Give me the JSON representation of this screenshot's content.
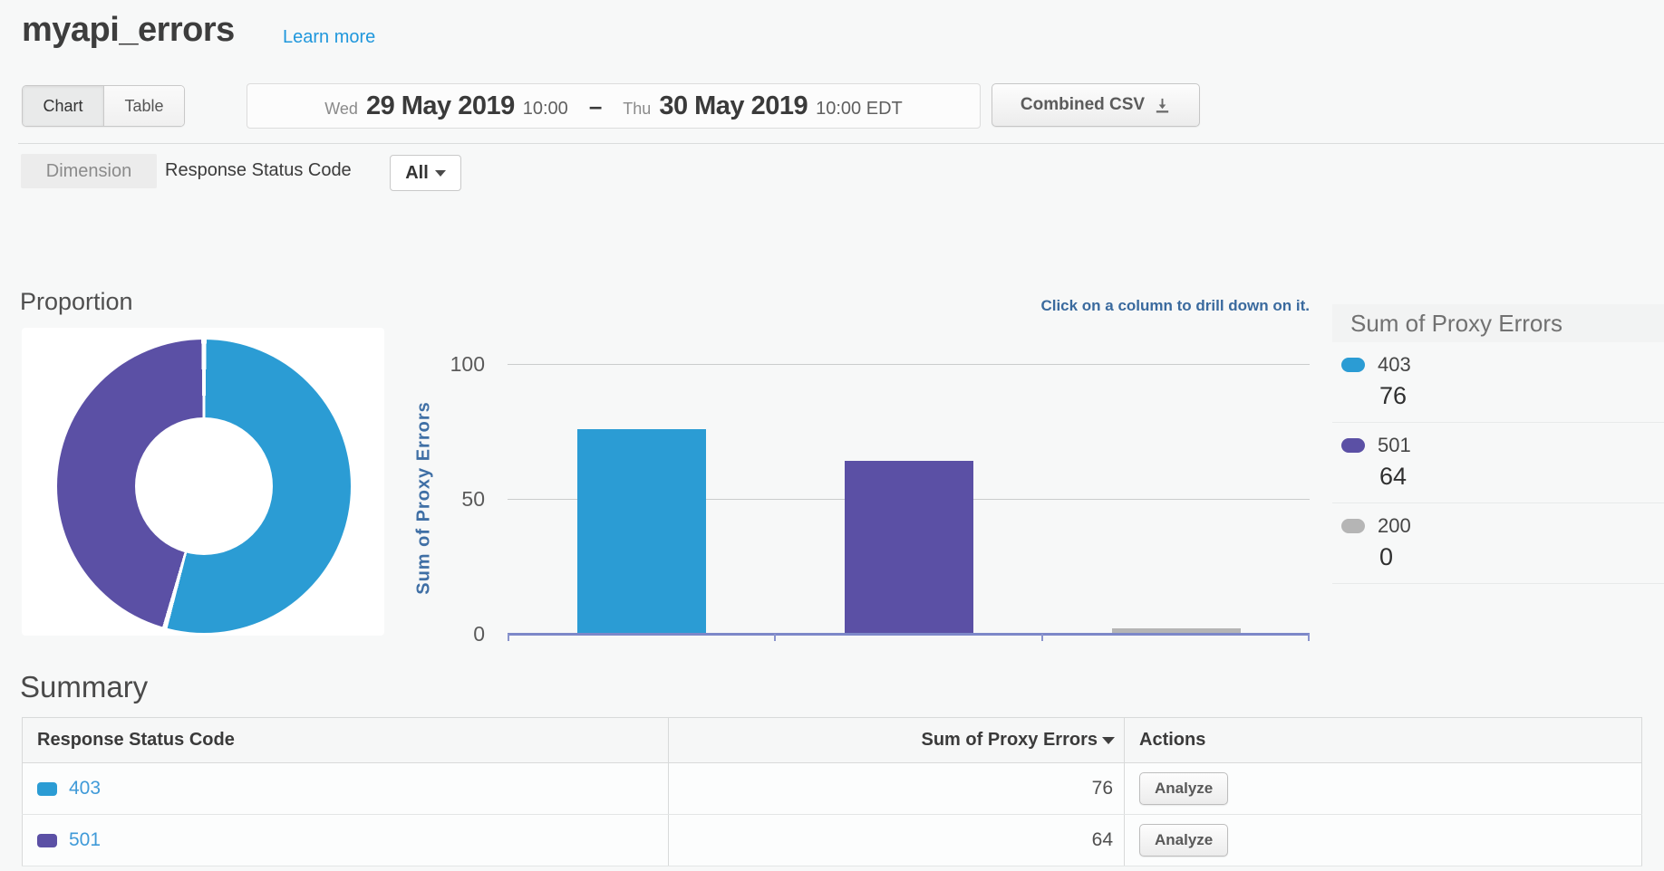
{
  "page": {
    "title": "myapi_errors",
    "learn_more": "Learn more"
  },
  "toolbar": {
    "view_toggle": [
      {
        "label": "Chart",
        "active": true
      },
      {
        "label": "Table",
        "active": false
      }
    ],
    "date_range": {
      "from_day": "Wed",
      "from_date": "29 May 2019",
      "from_time": "10:00",
      "separator": "–",
      "to_day": "Thu",
      "to_date": "30 May 2019",
      "to_time": "10:00 EDT"
    },
    "csv_button": "Combined CSV"
  },
  "dimension_bar": {
    "label": "Dimension",
    "dimension": "Response Status Code",
    "filter_value": "All"
  },
  "charts": {
    "proportion_title": "Proportion",
    "drill_hint": "Click on a column to drill down on it.",
    "y_axis_label": "Sum of Proxy Errors",
    "y_ticks": [
      "100",
      "50",
      "0"
    ],
    "legend": {
      "title": "Sum of Proxy Errors",
      "items": [
        {
          "label": "403",
          "value": "76",
          "color": "#2b9cd4"
        },
        {
          "label": "501",
          "value": "64",
          "color": "#5b50a5"
        },
        {
          "label": "200",
          "value": "0",
          "color": "#b5b5b5"
        }
      ]
    }
  },
  "chart_data": [
    {
      "type": "pie",
      "title": "Proportion",
      "labels": [
        "403",
        "501"
      ],
      "values": [
        76,
        64
      ],
      "colors": [
        "#2b9cd4",
        "#5b50a5"
      ],
      "donut": true
    },
    {
      "type": "bar",
      "title": "Sum of Proxy Errors",
      "categories": [
        "403",
        "501",
        "200"
      ],
      "values": [
        76,
        64,
        0
      ],
      "colors": [
        "#2b9cd4",
        "#5b50a5",
        "#b5b5b5"
      ],
      "xlabel": "Response Status Code",
      "ylabel": "Sum of Proxy Errors",
      "ylim": [
        0,
        100
      ],
      "yticks": [
        0,
        50,
        100
      ],
      "grid": true,
      "legend_position": "right"
    }
  ],
  "summary": {
    "title": "Summary",
    "columns": [
      "Response Status Code",
      "Sum of Proxy Errors",
      "Actions"
    ],
    "rows": [
      {
        "code": "403",
        "color": "#2b9cd4",
        "value": "76",
        "action": "Analyze"
      },
      {
        "code": "501",
        "color": "#5b50a5",
        "value": "64",
        "action": "Analyze"
      }
    ]
  },
  "colors": {
    "series_403": "#2b9cd4",
    "series_501": "#5b50a5",
    "series_200": "#b5b5b5",
    "link_blue": "#1f97dc",
    "hint_blue": "#3a6a9e",
    "axis_line": "#7d88c8",
    "page_background": "#f7f8f8"
  }
}
